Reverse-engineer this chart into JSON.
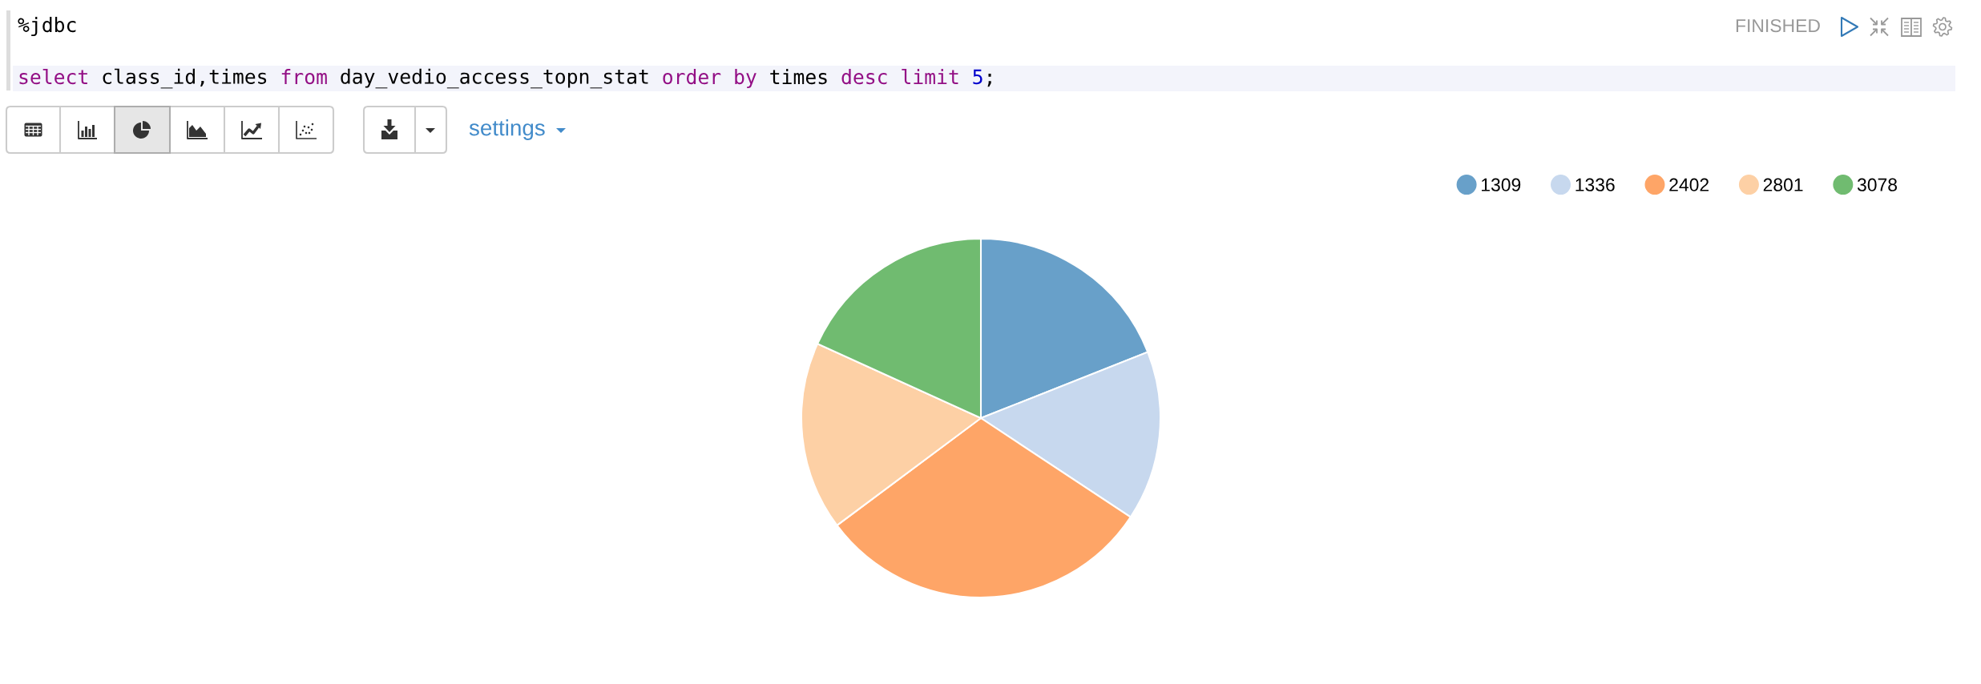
{
  "chart_data": {
    "type": "pie",
    "categories": [
      "1309",
      "1336",
      "2402",
      "2801",
      "3078"
    ],
    "values": [
      19.0,
      15.3,
      30.5,
      17.0,
      18.2
    ],
    "colors": [
      "#68a0c9",
      "#c7d8ee",
      "#fea567",
      "#fdd0a5",
      "#70bb70"
    ],
    "legend": "top right",
    "annotations": [
      "%jdbc",
      "select class_id,times from day_vedio_access_topn_stat order by times desc limit 5;",
      "FINISHED",
      "settings"
    ]
  }
}
